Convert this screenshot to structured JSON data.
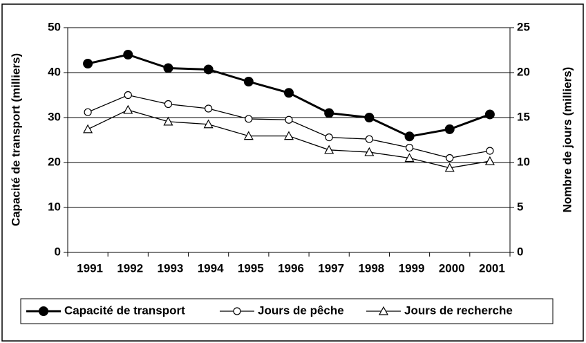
{
  "chart_data": {
    "type": "line",
    "categories": [
      "1991",
      "1992",
      "1993",
      "1994",
      "1995",
      "1996",
      "1997",
      "1998",
      "1999",
      "2000",
      "2001"
    ],
    "ylabel": "Capacité de transport (milliers)",
    "y2label": "Nombre de jours (milliers)",
    "ylim": [
      0,
      50
    ],
    "yticks": [
      0,
      10,
      20,
      30,
      40,
      50
    ],
    "y2lim": [
      0,
      25
    ],
    "y2ticks": [
      0,
      5,
      10,
      15,
      20,
      25
    ],
    "grid": true,
    "legend": "bottom",
    "series": [
      {
        "name": "Capacité de transport",
        "color": "#000000",
        "marker": "filled-circle",
        "values": [
          42,
          44,
          41,
          40.7,
          38,
          35.5,
          31,
          30,
          25.8,
          27.4,
          30.7
        ]
      },
      {
        "name": "Jours de pêche",
        "color": "#000000",
        "marker": "circle",
        "axis": "y2",
        "values": [
          15.6,
          17.5,
          16.5,
          16,
          14.85,
          14.75,
          12.8,
          12.6,
          11.65,
          10.5,
          11.3
        ]
      },
      {
        "name": "Jours de recherche",
        "color": "#000000",
        "marker": "triangle",
        "axis": "y2",
        "values": [
          13.7,
          15.85,
          14.55,
          14.25,
          12.95,
          12.95,
          11.4,
          11.15,
          10.5,
          9.4,
          10.15
        ]
      }
    ]
  }
}
